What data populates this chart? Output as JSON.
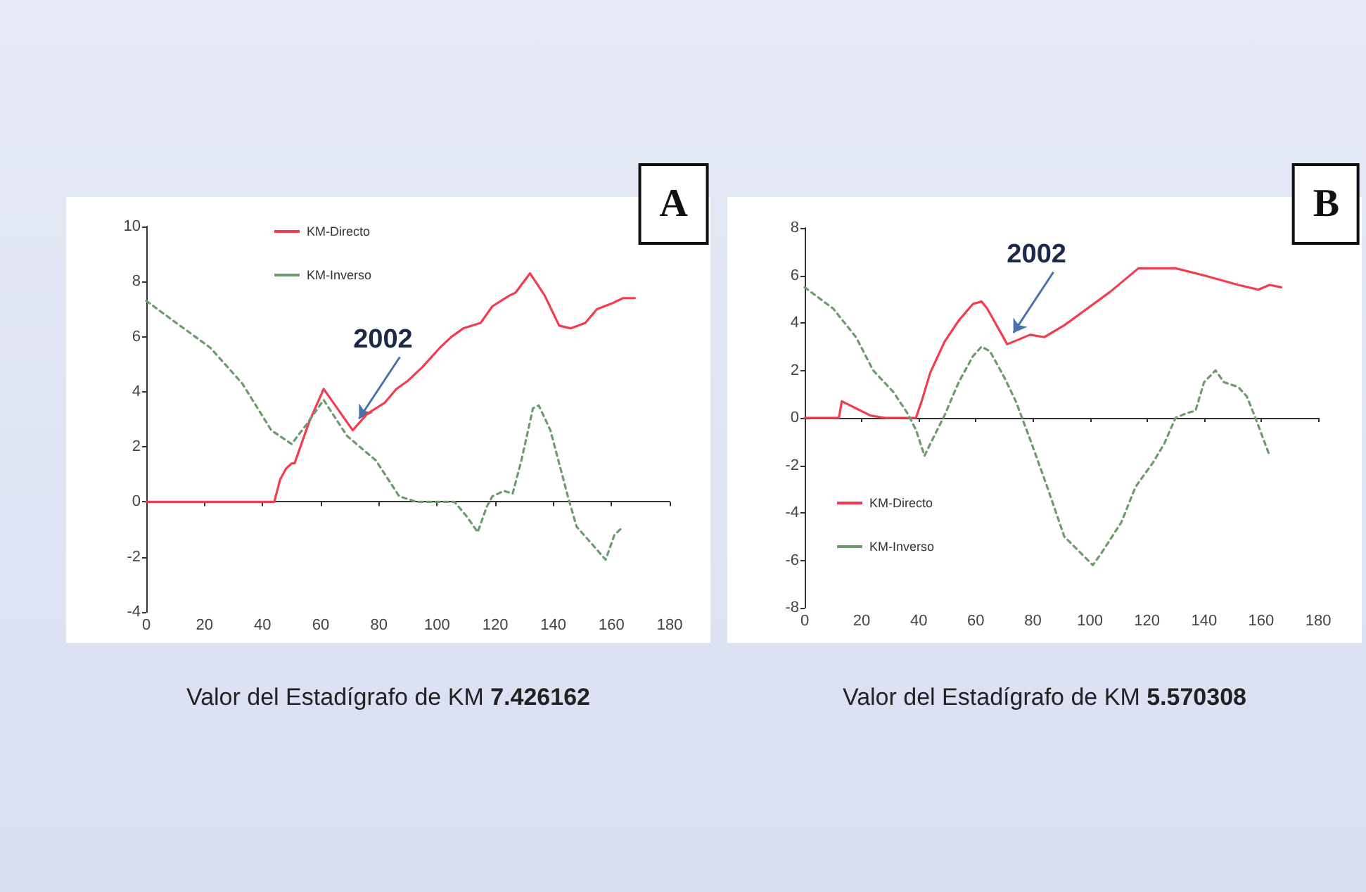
{
  "chart_data": [
    {
      "type": "line",
      "title": "A",
      "xlim": [
        0,
        180
      ],
      "xticks": [
        0,
        20,
        40,
        60,
        80,
        100,
        120,
        140,
        160,
        180
      ],
      "ylim": [
        -4,
        10
      ],
      "yticks": [
        -4,
        -2,
        0,
        2,
        4,
        6,
        8,
        10
      ],
      "marker": "none",
      "legend": "top left",
      "annotations": [
        {
          "text": "2002",
          "x": 71,
          "y": 2.6
        },
        "Valor del Estadígrafo de KM 7.426162"
      ],
      "series": [
        {
          "name": "KM-Directo",
          "color": "#f23c50",
          "line_style": "solid",
          "x": [
            0,
            44,
            46,
            48,
            50,
            51,
            53,
            56,
            61,
            71,
            76,
            79,
            82,
            86,
            90,
            95,
            101,
            105,
            109,
            115,
            119,
            122,
            125,
            127,
            132,
            137,
            142,
            146,
            151,
            155,
            160,
            164,
            168
          ],
          "values": [
            0,
            0,
            0.8,
            1.2,
            1.4,
            1.4,
            2.0,
            2.9,
            4.1,
            2.6,
            3.2,
            3.4,
            3.6,
            4.1,
            4.4,
            4.9,
            5.6,
            6.0,
            6.3,
            6.5,
            7.1,
            7.3,
            7.5,
            7.6,
            8.3,
            7.5,
            6.4,
            6.3,
            6.5,
            7.0,
            7.2,
            7.4,
            7.4
          ]
        },
        {
          "name": "KM-Inverso",
          "color": "#6f9a6f",
          "line_style": "dashed",
          "x": [
            0,
            9,
            22,
            33,
            43,
            50,
            55,
            61,
            69,
            79,
            87,
            93,
            106,
            110,
            114,
            117,
            119,
            123,
            126,
            129,
            133,
            135,
            139,
            142,
            145,
            148,
            153,
            158,
            161,
            164
          ],
          "values": [
            7.3,
            6.6,
            5.6,
            4.3,
            2.6,
            2.1,
            2.8,
            3.7,
            2.4,
            1.5,
            0.2,
            0,
            0,
            -0.5,
            -1.1,
            -0.2,
            0.2,
            0.4,
            0.3,
            1.5,
            3.4,
            3.5,
            2.6,
            1.4,
            0.2,
            -0.9,
            -1.5,
            -2.1,
            -1.2,
            -0.9
          ]
        }
      ]
    },
    {
      "type": "line",
      "title": "B",
      "xlim": [
        0,
        180
      ],
      "xticks": [
        0,
        20,
        40,
        60,
        80,
        100,
        120,
        140,
        160,
        180
      ],
      "ylim": [
        -8,
        8
      ],
      "yticks": [
        -8,
        -6,
        -4,
        -2,
        0,
        2,
        4,
        6,
        8
      ],
      "marker": "none",
      "legend": "bottom left",
      "annotations": [
        {
          "text": "2002",
          "x": 71,
          "y": 3.1
        },
        "Valor del Estadígrafo de KM 5.570308"
      ],
      "series": [
        {
          "name": "KM-Directo",
          "color": "#f23c50",
          "line_style": "solid",
          "x": [
            0,
            12,
            13,
            18,
            23,
            28,
            39,
            41,
            44,
            49,
            54,
            59,
            62,
            64,
            71,
            79,
            84,
            91,
            99,
            107,
            117,
            124,
            130,
            140,
            152,
            159,
            163,
            167
          ],
          "values": [
            0,
            0,
            0.7,
            0.4,
            0.1,
            0,
            0,
            0.7,
            1.9,
            3.2,
            4.1,
            4.8,
            4.9,
            4.6,
            3.1,
            3.5,
            3.4,
            3.9,
            4.6,
            5.3,
            6.3,
            6.3,
            6.3,
            6.0,
            5.6,
            5.4,
            5.6,
            5.5
          ]
        },
        {
          "name": "KM-Inverso",
          "color": "#6f9a6f",
          "line_style": "dashed",
          "x": [
            0,
            10,
            18,
            24,
            31,
            36,
            39,
            42,
            44,
            49,
            54,
            59,
            62,
            65,
            70,
            74,
            79,
            85,
            91,
            96,
            101,
            104,
            111,
            116,
            122,
            126,
            130,
            134,
            137,
            140,
            144,
            147,
            152,
            155,
            158,
            163
          ],
          "values": [
            5.5,
            4.6,
            3.4,
            2.0,
            1.1,
            0.2,
            -0.5,
            -1.6,
            -1.1,
            0.1,
            1.5,
            2.6,
            3.0,
            2.8,
            1.7,
            0.7,
            -0.9,
            -2.9,
            -5.0,
            -5.6,
            -6.2,
            -5.7,
            -4.4,
            -2.9,
            -1.9,
            -1.1,
            0,
            0.2,
            0.3,
            1.5,
            2.0,
            1.5,
            1.3,
            0.9,
            0,
            -1.6
          ]
        }
      ]
    }
  ]
}
